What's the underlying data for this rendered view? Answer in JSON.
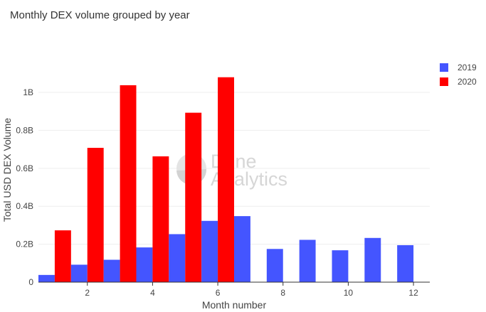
{
  "title": "Monthly DEX volume grouped by year",
  "watermark": {
    "line1": "Dune",
    "line2": "Analytics"
  },
  "colors": {
    "2019": "#4455ff",
    "2020": "#ff0000",
    "grid": "#eeeeee",
    "axis": "#333333"
  },
  "chart_data": {
    "type": "bar",
    "title": "Monthly DEX volume grouped by year",
    "xlabel": "Month number",
    "ylabel": "Total USD DEX Volume",
    "xlim": [
      0.5,
      12.5
    ],
    "ylim": [
      0,
      1150000000
    ],
    "x_ticks": [
      2,
      4,
      6,
      8,
      10,
      12
    ],
    "x_tick_labels": [
      "2",
      "4",
      "6",
      "8",
      "10",
      "12"
    ],
    "y_ticks": [
      0,
      200000000,
      400000000,
      600000000,
      800000000,
      1000000000
    ],
    "y_tick_labels": [
      "0",
      "0.2B",
      "0.4B",
      "0.6B",
      "0.8B",
      "1B"
    ],
    "grid": true,
    "legend_position": "top-right",
    "categories": [
      1,
      2,
      3,
      4,
      5,
      6,
      7,
      8,
      9,
      10,
      11,
      12
    ],
    "series": [
      {
        "name": "2019",
        "color": "#4455ff",
        "values": [
          38000000,
          92000000,
          118000000,
          183000000,
          253000000,
          323000000,
          348000000,
          175000000,
          223000000,
          168000000,
          233000000,
          195000000
        ]
      },
      {
        "name": "2020",
        "color": "#ff0000",
        "values": [
          273000000,
          708000000,
          1038000000,
          663000000,
          893000000,
          1080000000,
          null,
          null,
          null,
          null,
          null,
          null
        ]
      }
    ]
  }
}
